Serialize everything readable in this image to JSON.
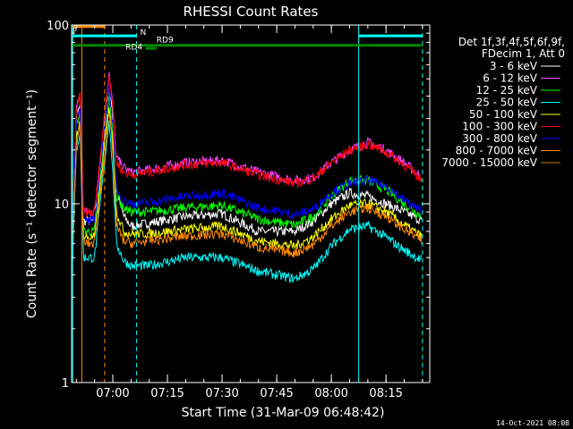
{
  "chart_data": {
    "type": "line",
    "title": "RHESSI Count Rates",
    "xlabel": "Start Time (31-Mar-09 06:48:42)",
    "ylabel": "Count Rate (s⁻¹ detector segment⁻¹)",
    "y_scale": "log",
    "ylim": [
      1,
      100
    ],
    "y_ticks": [
      "1",
      "10",
      "100"
    ],
    "x_range": [
      "06:48:42",
      "08:27:00"
    ],
    "x_ticks": [
      "07:00",
      "07:15",
      "07:30",
      "07:45",
      "08:00",
      "08:15"
    ],
    "legend_header": [
      "Det 1f,3f,4f,5f,6f,9f,",
      "FDecim 1, Att 0"
    ],
    "legend_placement": "right",
    "timestamp": "14-Oct-2021 08:08",
    "annotations": {
      "flag_labels": [
        "N",
        "RD9",
        "RD4"
      ],
      "corner_label": "P",
      "vertical_lines": [
        {
          "time": "06:49:00",
          "style": "solid",
          "color": "#00ffff"
        },
        {
          "time": "06:51:30",
          "style": "solid",
          "color": "#ff8800"
        },
        {
          "time": "06:57:45",
          "style": "dashed",
          "color": "#ff8800"
        },
        {
          "time": "07:06:30",
          "style": "dashed",
          "color": "#00ffff"
        },
        {
          "time": "08:07:30",
          "style": "solid",
          "color": "#00ffff"
        },
        {
          "time": "08:25:00",
          "style": "dashed",
          "color": "#00ffff"
        }
      ],
      "flag_bars": [
        {
          "label": "",
          "start": "06:49:00",
          "end": "06:58:00",
          "color": "#ff8800",
          "level": 98
        },
        {
          "label": "",
          "start": "06:49:00",
          "end": "07:06:30",
          "color": "#00ffff",
          "level": 87
        },
        {
          "label": "",
          "start": "08:07:30",
          "end": "08:25:00",
          "color": "#00ffff",
          "level": 87
        },
        {
          "label": "",
          "start": "06:49:00",
          "end": "08:25:00",
          "color": "#008800",
          "level": 77
        },
        {
          "label": "",
          "start": "07:09:00",
          "end": "07:12:00",
          "color": "#008800",
          "level": 74
        }
      ]
    },
    "series": [
      {
        "name": "3 - 6 keV",
        "color": "#ffffff",
        "times": [
          "06:49",
          "06:50",
          "06:51",
          "06:52",
          "06:55",
          "06:59",
          "07:00",
          "07:01",
          "07:03",
          "07:05",
          "07:10",
          "07:20",
          "07:30",
          "07:40",
          "07:50",
          "07:55",
          "08:00",
          "08:05",
          "08:10",
          "08:15",
          "08:20",
          "08:25"
        ],
        "values": [
          8.0,
          30,
          35,
          8.0,
          8.0,
          45,
          30,
          12,
          8.5,
          7.5,
          7.8,
          8.5,
          8.8,
          7.0,
          7.0,
          8.0,
          10,
          11.5,
          11,
          10,
          9,
          8
        ]
      },
      {
        "name": "6 - 12 keV",
        "color": "#ff44ff",
        "times": [
          "06:49",
          "06:50",
          "06:51",
          "06:52",
          "06:55",
          "06:59",
          "07:00",
          "07:01",
          "07:03",
          "07:05",
          "07:10",
          "07:20",
          "07:30",
          "07:40",
          "07:50",
          "07:55",
          "08:00",
          "08:05",
          "08:10",
          "08:15",
          "08:20",
          "08:25"
        ],
        "values": [
          9,
          35,
          40,
          9,
          9,
          55,
          35,
          18,
          16,
          15,
          15.5,
          17,
          17.5,
          15,
          13.5,
          14,
          17,
          20,
          22,
          20,
          17,
          14
        ]
      },
      {
        "name": "12 - 25 keV",
        "color": "#00ff00",
        "times": [
          "06:49",
          "06:50",
          "06:51",
          "06:52",
          "06:55",
          "06:59",
          "07:00",
          "07:01",
          "07:03",
          "07:05",
          "07:10",
          "07:20",
          "07:30",
          "07:40",
          "07:50",
          "07:55",
          "08:00",
          "08:05",
          "08:10",
          "08:15",
          "08:20",
          "08:25"
        ],
        "values": [
          7,
          28,
          32,
          7,
          7,
          40,
          25,
          11,
          9.5,
          9,
          9,
          9.5,
          9.8,
          8.2,
          7.6,
          8.5,
          11,
          13.5,
          13.5,
          12,
          10,
          8.5
        ]
      },
      {
        "name": "25 - 50 keV",
        "color": "#00ffff",
        "times": [
          "06:49",
          "06:50",
          "06:51",
          "06:52",
          "06:55",
          "06:59",
          "07:00",
          "07:01",
          "07:03",
          "07:05",
          "07:10",
          "07:20",
          "07:30",
          "07:40",
          "07:50",
          "07:55",
          "08:00",
          "08:05",
          "08:10",
          "08:15",
          "08:20",
          "08:25"
        ],
        "values": [
          5,
          20,
          25,
          5,
          5,
          30,
          15,
          6,
          4.8,
          4.5,
          4.5,
          5.0,
          5.0,
          4.2,
          3.8,
          4.3,
          5.8,
          7.2,
          7.5,
          6.5,
          5.5,
          4.8
        ]
      },
      {
        "name": "50 - 100 keV",
        "color": "#ffff00",
        "times": [
          "06:49",
          "06:50",
          "06:51",
          "06:52",
          "06:55",
          "06:59",
          "07:00",
          "07:01",
          "07:03",
          "07:05",
          "07:10",
          "07:20",
          "07:30",
          "07:40",
          "07:50",
          "07:55",
          "08:00",
          "08:05",
          "08:10",
          "08:15",
          "08:20",
          "08:25"
        ],
        "values": [
          6.5,
          24,
          28,
          6.5,
          6.5,
          36,
          22,
          9,
          7,
          6.8,
          6.8,
          7.2,
          7.5,
          6.2,
          5.8,
          6.5,
          8.2,
          9.8,
          10,
          9,
          7.6,
          6.5
        ]
      },
      {
        "name": "100 - 300 keV",
        "color": "#ff0000",
        "times": [
          "06:49",
          "06:50",
          "06:51",
          "06:52",
          "06:55",
          "06:59",
          "07:00",
          "07:01",
          "07:03",
          "07:05",
          "07:10",
          "07:20",
          "07:30",
          "07:40",
          "07:50",
          "07:55",
          "08:00",
          "08:05",
          "08:10",
          "08:15",
          "08:20",
          "08:25"
        ],
        "values": [
          9,
          34,
          40,
          9,
          9,
          55,
          35,
          17,
          15,
          14.5,
          15,
          16.5,
          17,
          14.5,
          13,
          13.8,
          17,
          20,
          21.5,
          19.5,
          16.5,
          13.5
        ]
      },
      {
        "name": "300 - 800 keV",
        "color": "#0000ff",
        "times": [
          "06:49",
          "06:50",
          "06:51",
          "06:52",
          "06:55",
          "06:59",
          "07:00",
          "07:01",
          "07:03",
          "07:05",
          "07:10",
          "07:20",
          "07:30",
          "07:40",
          "07:50",
          "07:55",
          "08:00",
          "08:05",
          "08:10",
          "08:15",
          "08:20",
          "08:25"
        ],
        "values": [
          8,
          30,
          35,
          8,
          8,
          45,
          28,
          12,
          10.5,
          10,
          10.2,
          11,
          11.5,
          9.5,
          8.7,
          9.3,
          11.5,
          13,
          13.5,
          12.5,
          10.5,
          9
        ]
      },
      {
        "name": "800 - 7000 keV",
        "color": "#ff8800",
        "times": [
          "06:49",
          "06:50",
          "06:51",
          "06:52",
          "06:55",
          "06:59",
          "07:00",
          "07:01",
          "07:03",
          "07:05",
          "07:10",
          "07:20",
          "07:30",
          "07:40",
          "07:50",
          "07:55",
          "08:00",
          "08:05",
          "08:10",
          "08:15",
          "08:20",
          "08:25"
        ],
        "values": [
          6,
          22,
          26,
          6,
          6,
          32,
          20,
          7.5,
          6.2,
          6,
          6.2,
          6.6,
          6.8,
          5.7,
          5.3,
          5.9,
          7.5,
          9,
          9.5,
          8.5,
          7.2,
          6.2
        ]
      },
      {
        "name": "7000 - 15000 keV",
        "color": "#b08800",
        "times": [],
        "values": []
      }
    ]
  }
}
